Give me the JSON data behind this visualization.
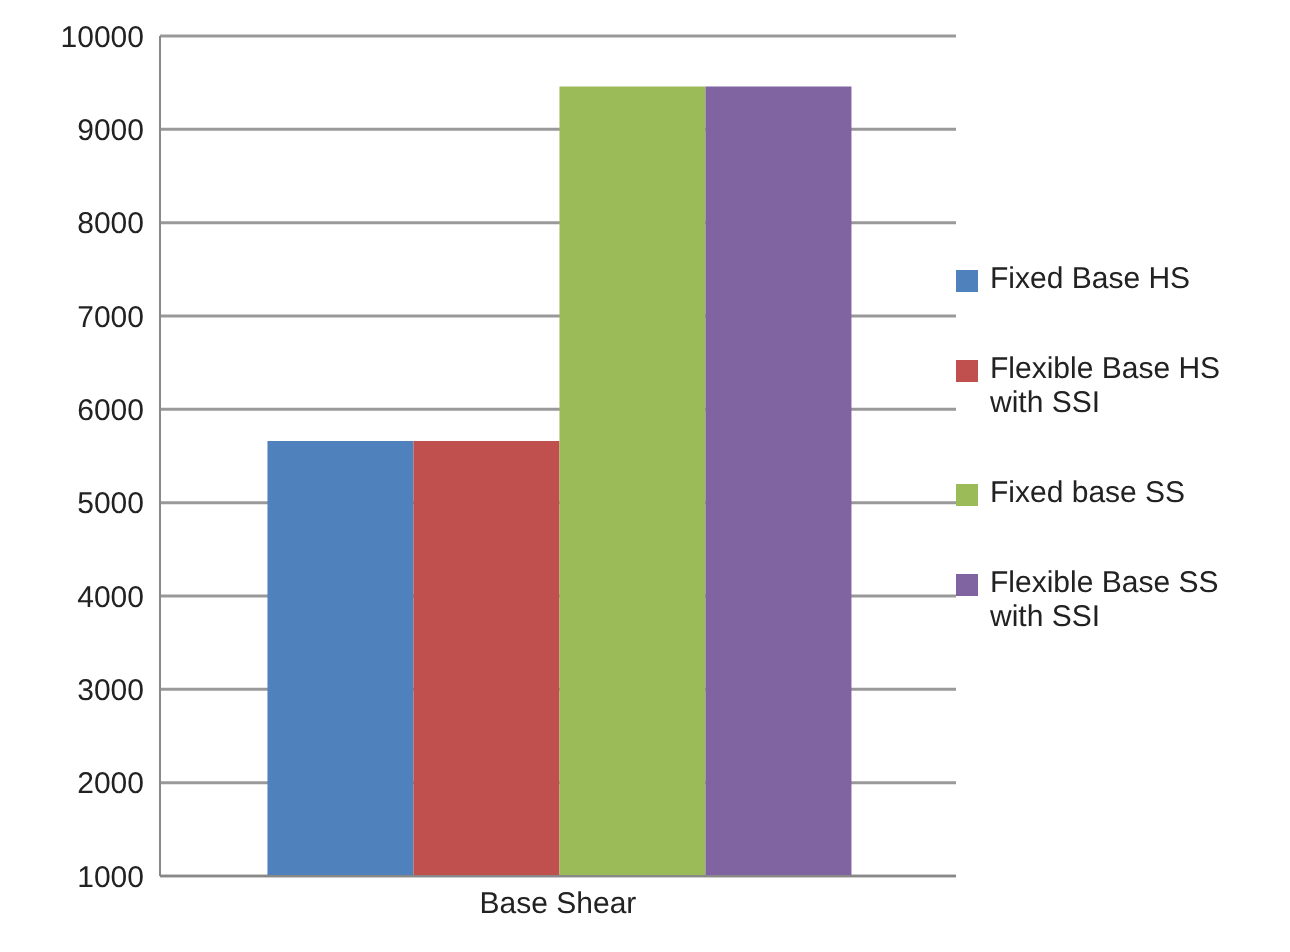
{
  "chart_data": {
    "type": "bar",
    "categories": [
      "Base Shear"
    ],
    "series": [
      {
        "name": "Fixed Base HS",
        "color": "#4f81bd",
        "values": [
          5660
        ]
      },
      {
        "name": "Flexible Base HS with SSI",
        "color": "#c0504d",
        "values": [
          5660
        ]
      },
      {
        "name": "Fixed base SS",
        "color": "#9bbb59",
        "values": [
          9460
        ]
      },
      {
        "name": "Flexible Base SS with SSI",
        "color": "#8064a2",
        "values": [
          9460
        ]
      }
    ],
    "ylim": [
      1000,
      10000
    ],
    "yticks": [
      1000,
      2000,
      3000,
      4000,
      5000,
      6000,
      7000,
      8000,
      9000,
      10000
    ],
    "grid": "y",
    "legend": "right"
  }
}
